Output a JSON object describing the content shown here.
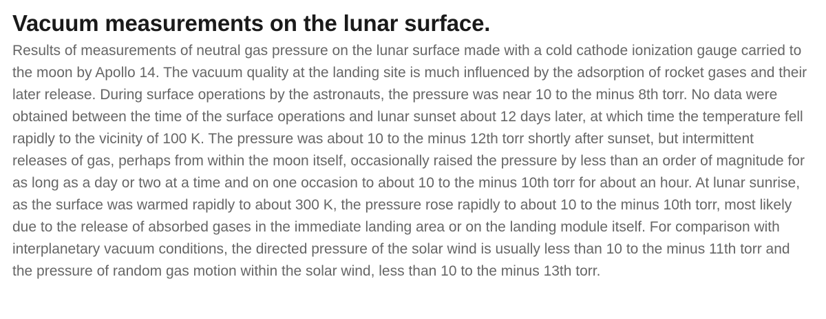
{
  "article": {
    "title": "Vacuum measurements on the lunar surface.",
    "body": "Results of measurements of neutral gas pressure on the lunar surface made with a cold cathode ionization gauge carried to the moon by Apollo 14. The vacuum quality at the landing site is much influenced by the adsorption of rocket gases and their later release. During surface operations by the astronauts, the pressure was near 10 to the minus 8th torr. No data were obtained between the time of the surface operations and lunar sunset about 12 days later, at which time the temperature fell rapidly to the vicinity of 100 K. The pressure was about 10 to the minus 12th torr shortly after sunset, but intermittent releases of gas, perhaps from within the moon itself, occasionally raised the pressure by less than an order of magnitude for as long as a day or two at a time and on one occasion to about 10 to the minus 10th torr for about an hour. At lunar sunrise, as the surface was warmed rapidly to about 300 K, the pressure rose rapidly to about 10 to the minus 10th torr, most likely due to the release of absorbed gases in the immediate landing area or on the landing module itself. For comparison with interplanetary vacuum conditions, the directed pressure of the solar wind is usually less than 10 to the minus 11th torr and the pressure of random gas motion within the solar wind, less than 10 to the minus 13th torr."
  },
  "colors": {
    "title": "#1a1a1a",
    "body": "#666666",
    "background": "#ffffff"
  }
}
